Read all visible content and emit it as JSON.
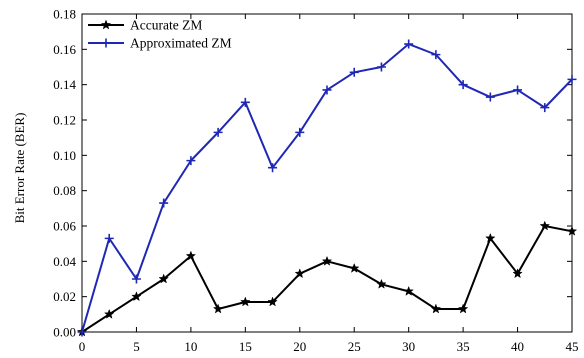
{
  "chart_data": {
    "type": "line",
    "title": "",
    "xlabel": "",
    "ylabel": "Bit Error Rate (BER)",
    "xlim": [
      0,
      45
    ],
    "ylim": [
      0,
      0.18
    ],
    "xticks": [
      "0",
      "5",
      "10",
      "15",
      "20",
      "25",
      "30",
      "35",
      "40",
      "45"
    ],
    "yticks": [
      "0.00",
      "0.02",
      "0.04",
      "0.06",
      "0.08",
      "0.10",
      "0.12",
      "0.14",
      "0.16",
      "0.18"
    ],
    "grid": false,
    "legend_position": "top-left",
    "x": [
      0,
      2.5,
      5,
      7.5,
      10,
      12.5,
      15,
      17.5,
      20,
      22.5,
      25,
      27.5,
      30,
      32.5,
      35,
      37.5,
      40,
      42.5,
      45
    ],
    "series": [
      {
        "name": "Accurate ZM",
        "color": "#000000",
        "marker": "star",
        "values": [
          0.0,
          0.01,
          0.02,
          0.03,
          0.043,
          0.013,
          0.017,
          0.017,
          0.033,
          0.04,
          0.036,
          0.027,
          0.023,
          0.013,
          0.013,
          0.053,
          0.033,
          0.06,
          0.057
        ]
      },
      {
        "name": "Approximated ZM",
        "color": "#1f28b4",
        "marker": "plus",
        "values": [
          0.0,
          0.053,
          0.03,
          0.073,
          0.097,
          0.113,
          0.13,
          0.093,
          0.113,
          0.137,
          0.147,
          0.15,
          0.163,
          0.157,
          0.14,
          0.133,
          0.137,
          0.127,
          0.143
        ]
      }
    ]
  }
}
